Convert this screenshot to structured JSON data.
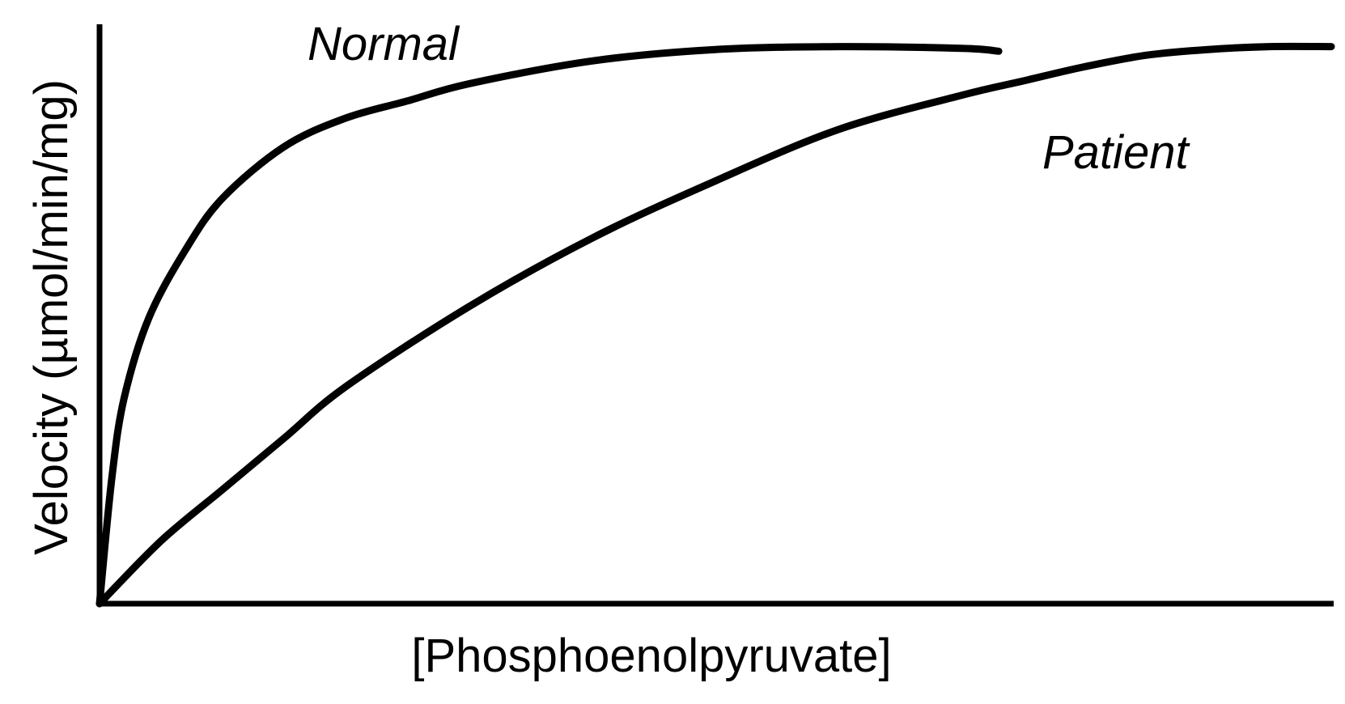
{
  "chart_data": {
    "type": "line",
    "title": "",
    "xlabel": "[Phosphoenolpyruvate]",
    "ylabel": "Velocity (µmol/min/mg)",
    "xlim": [
      0,
      100
    ],
    "ylim": [
      0,
      100
    ],
    "grid": false,
    "legend": "none",
    "series": [
      {
        "name": "Normal",
        "x": [
          0,
          1,
          2,
          4,
          7,
          10,
          15,
          20,
          25,
          30,
          40,
          50,
          60,
          70,
          73
        ],
        "y": [
          0,
          22,
          36,
          50,
          62,
          71,
          80,
          85,
          88,
          91,
          95,
          97,
          97.5,
          97.2,
          96.7
        ]
      },
      {
        "name": "Patient",
        "x": [
          0,
          5,
          10,
          15,
          20,
          30,
          40,
          50,
          60,
          70,
          75,
          80,
          85,
          90,
          95,
          100
        ],
        "y": [
          0,
          11,
          20,
          29,
          38,
          52,
          64,
          74,
          83,
          89,
          91.5,
          94,
          96,
          97,
          97.5,
          97.5
        ]
      }
    ],
    "annotations": [
      {
        "text": "Normal",
        "series": "Normal"
      },
      {
        "text": "Patient",
        "series": "Patient"
      }
    ]
  }
}
